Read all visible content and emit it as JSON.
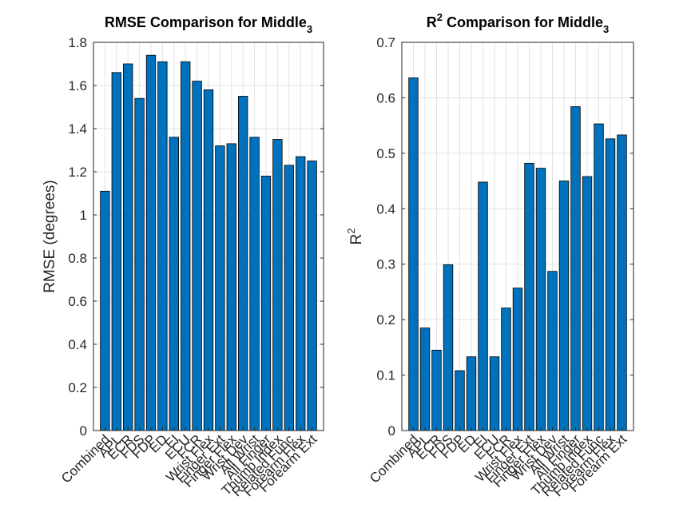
{
  "chart_data": [
    {
      "type": "bar",
      "title": "RMSE Comparison for Middle",
      "title_subscript": "3",
      "xlabel": "",
      "ylabel": "RMSE (degrees)",
      "ylim": [
        0,
        1.8
      ],
      "yticks": [
        "0",
        "0.2",
        "0.4",
        "0.6",
        "0.8",
        "1",
        "1.2",
        "1.4",
        "1.6",
        "1.8"
      ],
      "categories": [
        "Combined",
        "APL",
        "ECR",
        "FDS",
        "FDP",
        "ED",
        "EI",
        "ECU",
        "FCR",
        "Wrist Flex",
        "Finger Ext",
        "Finger Flex",
        "Wrist Dev",
        "All Wrist",
        "All Finger",
        "Thumb Index",
        "Related Func",
        "Forearm Flex",
        "Forearm Ext"
      ],
      "values": [
        1.11,
        1.66,
        1.7,
        1.54,
        1.74,
        1.71,
        1.36,
        1.71,
        1.62,
        1.58,
        1.32,
        1.33,
        1.55,
        1.36,
        1.18,
        1.35,
        1.23,
        1.27,
        1.25
      ],
      "grid": true,
      "bar_color": "#0072BD"
    },
    {
      "type": "bar",
      "title": "Comparison for Middle",
      "title_prefix": "R",
      "title_superscript": "2",
      "title_subscript": "3",
      "xlabel": "",
      "ylabel": "R",
      "ylabel_superscript": "2",
      "ylim": [
        0,
        0.7
      ],
      "yticks": [
        "0",
        "0.1",
        "0.2",
        "0.3",
        "0.4",
        "0.5",
        "0.6",
        "0.7"
      ],
      "categories": [
        "Combined",
        "APL",
        "ECR",
        "FDS",
        "FDP",
        "ED",
        "EI",
        "ECU",
        "FCR",
        "Wrist Flex",
        "Finger Ext",
        "Finger Flex",
        "Wrist Dev",
        "All Wrist",
        "All Finger",
        "Thumb Index",
        "Related Func",
        "Forearm Flex",
        "Forearm Ext"
      ],
      "values": [
        0.636,
        0.185,
        0.145,
        0.299,
        0.108,
        0.133,
        0.448,
        0.133,
        0.221,
        0.257,
        0.482,
        0.473,
        0.287,
        0.45,
        0.584,
        0.458,
        0.553,
        0.526,
        0.533
      ],
      "grid": true,
      "bar_color": "#0072BD"
    }
  ]
}
